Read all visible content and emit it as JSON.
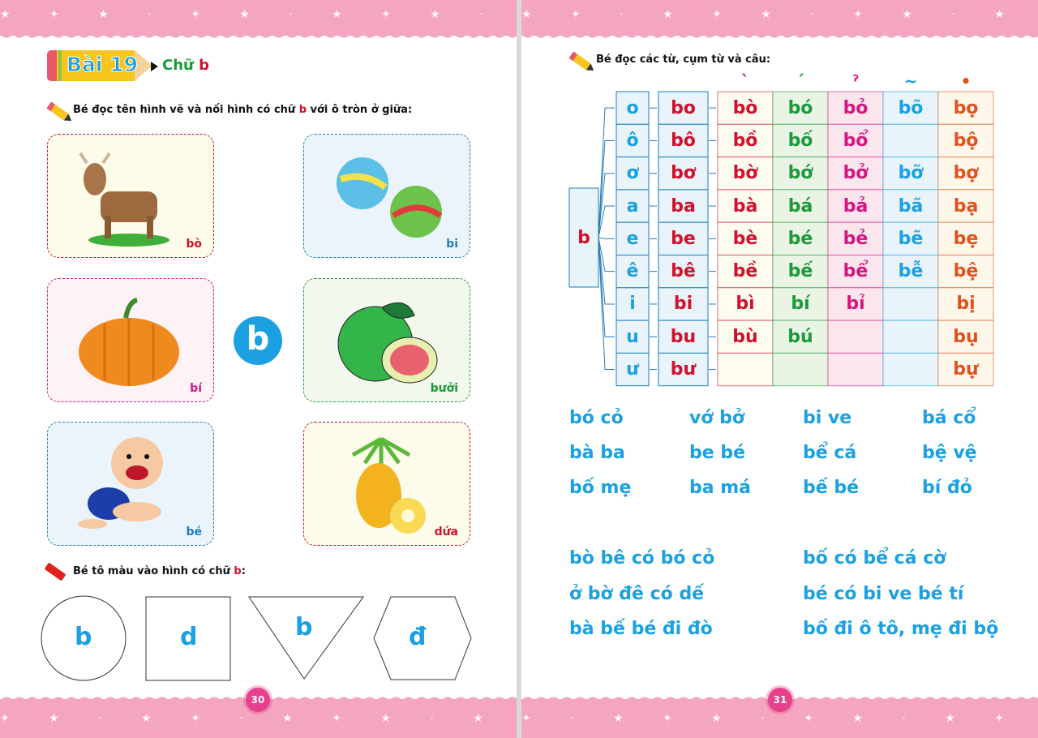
{
  "left_page": {
    "lesson_label": "Bài 19",
    "title_prefix": "Chữ",
    "title_letter": "b",
    "instruction1": {
      "before": "Bé đọc tên hình vẽ và nối hình có chữ ",
      "letter": "b",
      "after": " với ô tròn ở giữa:"
    },
    "center_letter": "b",
    "cards": [
      {
        "label": "bò",
        "picture": "cow",
        "color": "#d0122d",
        "bg": "#fdfbea"
      },
      {
        "label": "bi",
        "picture": "marbles",
        "color": "#1b7fc0",
        "bg": "#ebf4fb"
      },
      {
        "label": "bí",
        "picture": "pumpkin",
        "color": "#d6157f",
        "bg": "#fdf3f7"
      },
      {
        "label": "bưởi",
        "picture": "pomelo",
        "color": "#1a9a3a",
        "bg": "#f3f8ec"
      },
      {
        "label": "bé",
        "picture": "baby",
        "color": "#1b7fc0",
        "bg": "#ebf4fb"
      },
      {
        "label": "dứa",
        "picture": "pineapple",
        "color": "#d0122d",
        "bg": "#fdfbea"
      }
    ],
    "instruction2": {
      "before": "Bé tô màu vào hình có chữ ",
      "letter": "b",
      "after": ":"
    },
    "shapes": [
      {
        "shape": "circle",
        "letter": "b"
      },
      {
        "shape": "square",
        "letter": "d"
      },
      {
        "shape": "triangle",
        "letter": "b"
      },
      {
        "shape": "hexagon",
        "letter": "đ"
      }
    ],
    "page_number": "30"
  },
  "right_page": {
    "instruction": "Bé đọc các từ, cụm từ và câu:",
    "consonant": "b",
    "tone_marks": [
      "`",
      "´",
      "ˀ",
      "~",
      "•"
    ],
    "tone_colors": [
      "#d0122d",
      "#1a9a3a",
      "#d6157f",
      "#1ba1e2",
      "#e0521f"
    ],
    "rows": [
      {
        "vowel": "o",
        "syllable": "bo",
        "tones": [
          "bò",
          "bó",
          "bỏ",
          "bõ",
          "bọ"
        ]
      },
      {
        "vowel": "ô",
        "syllable": "bô",
        "tones": [
          "bồ",
          "bố",
          "bổ",
          "",
          "bộ"
        ]
      },
      {
        "vowel": "ơ",
        "syllable": "bơ",
        "tones": [
          "bờ",
          "bớ",
          "bở",
          "bỡ",
          "bợ"
        ]
      },
      {
        "vowel": "a",
        "syllable": "ba",
        "tones": [
          "bà",
          "bá",
          "bả",
          "bã",
          "bạ"
        ]
      },
      {
        "vowel": "e",
        "syllable": "be",
        "tones": [
          "bè",
          "bé",
          "bẻ",
          "bẽ",
          "bẹ"
        ]
      },
      {
        "vowel": "ê",
        "syllable": "bê",
        "tones": [
          "bề",
          "bế",
          "bể",
          "bễ",
          "bệ"
        ]
      },
      {
        "vowel": "i",
        "syllable": "bi",
        "tones": [
          "bì",
          "bí",
          "bỉ",
          "",
          "bị"
        ]
      },
      {
        "vowel": "u",
        "syllable": "bu",
        "tones": [
          "bù",
          "bú",
          "",
          "",
          "bụ"
        ]
      },
      {
        "vowel": "ư",
        "syllable": "bư",
        "tones": [
          "",
          "",
          "",
          "",
          "bự"
        ]
      }
    ],
    "words": [
      [
        "bó cỏ",
        "vớ bở",
        "bi ve",
        "bá cổ"
      ],
      [
        "bà ba",
        "be bé",
        "bể cá",
        "bệ vệ"
      ],
      [
        "bố mẹ",
        "ba má",
        "bế bé",
        "bí đỏ"
      ]
    ],
    "sentences": [
      [
        "bò bê có bó cỏ",
        "bố có bể cá cờ"
      ],
      [
        "ở bờ đê có dế",
        "bé có bi ve bé tí"
      ],
      [
        "bà bế bé đi đò",
        "bố đi ô tô, mẹ đi bộ"
      ]
    ],
    "page_number": "31"
  }
}
